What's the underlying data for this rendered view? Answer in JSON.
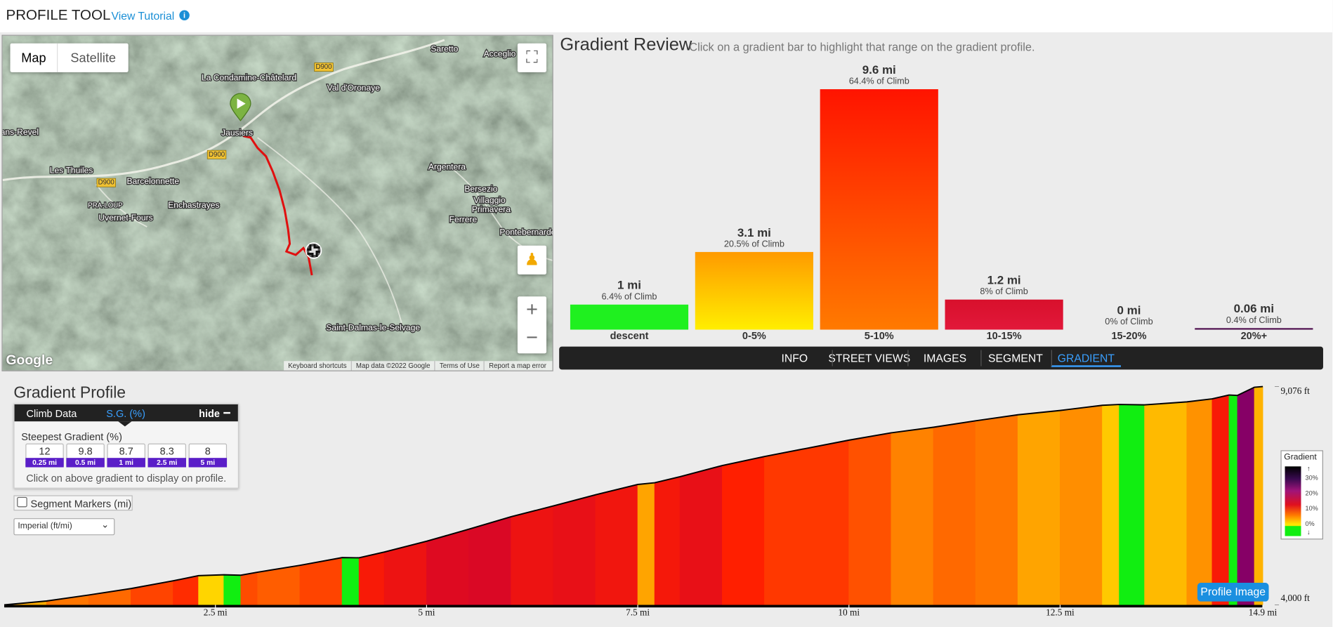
{
  "header": {
    "title": "PROFILE TOOL",
    "tutorial_link": "View Tutorial"
  },
  "map": {
    "buttons": [
      "Map",
      "Satellite"
    ],
    "labels": [
      "Saretto",
      "Acceglio",
      "D900",
      "La Condamine-Châtelard",
      "Val d'Oronaye",
      "Jausiers",
      "D900",
      "Les Thuiles",
      "D900",
      "Barcelonnette",
      "Argentera",
      "Bersezio",
      "Villaggio",
      "Primavera",
      "PRA-LOUP",
      "Enchastrayes",
      "Uvernet-Fours",
      "Ferrere",
      "Pontebernardo",
      "Saint-Dalmas-le-Selvage",
      "ans-Revel"
    ],
    "footer": [
      "Keyboard shortcuts",
      "Map data ©2022 Google",
      "Terms of Use",
      "Report a map error"
    ],
    "logo": "Google"
  },
  "tabs": [
    "INFO",
    "STREET VIEWS",
    "IMAGES",
    "SEGMENT",
    "GRADIENT"
  ],
  "active_tab": "GRADIENT",
  "chart_data": [
    {
      "type": "bar",
      "title": "Gradient Review",
      "subtitle": "Click on a gradient bar to highlight that range on the gradient profile.",
      "categories": [
        "descent",
        "0-5%",
        "5-10%",
        "10-15%",
        "15-20%",
        "20%+"
      ],
      "values": [
        1,
        3.1,
        9.6,
        1.2,
        0,
        0.06
      ],
      "value_labels": [
        "1 mi",
        "3.1 mi",
        "9.6 mi",
        "1.2 mi",
        "0 mi",
        "0.06 mi"
      ],
      "shares": [
        6.4,
        20.5,
        64.4,
        8,
        0,
        0.4
      ],
      "share_labels": [
        "6.4% of Climb",
        "20.5% of Climb",
        "64.4% of Climb",
        "8% of Climb",
        "0% of Climb",
        "0.4% of Climb"
      ],
      "colors": [
        [
          "#1ff01f",
          "#1ff01f"
        ],
        [
          "#ff9a00",
          "#ffee00"
        ],
        [
          "#ff1400",
          "#ff7a00"
        ],
        [
          "#d8102c",
          "#e2183a"
        ],
        [
          "#b0003a",
          "#b0003a"
        ],
        [
          "#4a0a4a",
          "#4a0a4a"
        ]
      ]
    },
    {
      "type": "area",
      "title": "Gradient Profile",
      "x": [
        0,
        0.5,
        1,
        1.5,
        2,
        2.3,
        2.6,
        2.8,
        3,
        3.5,
        4,
        4.2,
        4.5,
        5,
        5.5,
        6,
        6.5,
        7,
        7.5,
        7.7,
        8,
        8.5,
        9,
        9.5,
        10,
        10.5,
        11,
        11.5,
        12,
        12.5,
        13,
        13.2,
        13.5,
        14,
        14.3,
        14.5,
        14.6,
        14.8,
        14.9
      ],
      "values": [
        4000,
        4090,
        4230,
        4380,
        4560,
        4680,
        4700,
        4690,
        4760,
        4920,
        5100,
        5095,
        5230,
        5480,
        5760,
        6050,
        6300,
        6560,
        6800,
        6840,
        6980,
        7240,
        7450,
        7640,
        7830,
        8000,
        8130,
        8280,
        8420,
        8520,
        8640,
        8660,
        8650,
        8720,
        8790,
        8880,
        8870,
        9060,
        9076
      ],
      "xlim": [
        0,
        14.9
      ],
      "ylim": [
        4000,
        9076
      ],
      "xticks": [
        {
          "value": 2.5,
          "label": "2.5 mi"
        },
        {
          "value": 5,
          "label": "5 mi"
        },
        {
          "value": 7.5,
          "label": "7.5 mi"
        },
        {
          "value": 10,
          "label": "10 mi"
        },
        {
          "value": 12.5,
          "label": "12.5 mi"
        },
        {
          "value": 14.9,
          "label": "14.9 mi"
        }
      ],
      "yticks": [
        {
          "value": 4000,
          "label": "4,000 ft"
        },
        {
          "value": 9076,
          "label": "9,076 ft"
        }
      ],
      "line_color": "#000000"
    }
  ],
  "climb_panel": {
    "tabs": [
      "Climb Data",
      "S.G. (%)"
    ],
    "hide": "hide",
    "heading": "Steepest Gradient (%)",
    "steepest": [
      {
        "value": 12,
        "distance": "0.25 mi"
      },
      {
        "value": 9.8,
        "distance": "0.5 mi"
      },
      {
        "value": 8.7,
        "distance": "1 mi"
      },
      {
        "value": 8.3,
        "distance": "2.5 mi"
      },
      {
        "value": 8,
        "distance": "5 mi"
      }
    ],
    "hint": "Click on above gradient to display on profile."
  },
  "segment_markers": "Segment Markers (mi)",
  "units_select": "Imperial (ft/mi)",
  "legend": {
    "title": "Gradient",
    "ticks": [
      "30%",
      "20%",
      "10%",
      "0%"
    ]
  },
  "profile_button": "Profile Image"
}
